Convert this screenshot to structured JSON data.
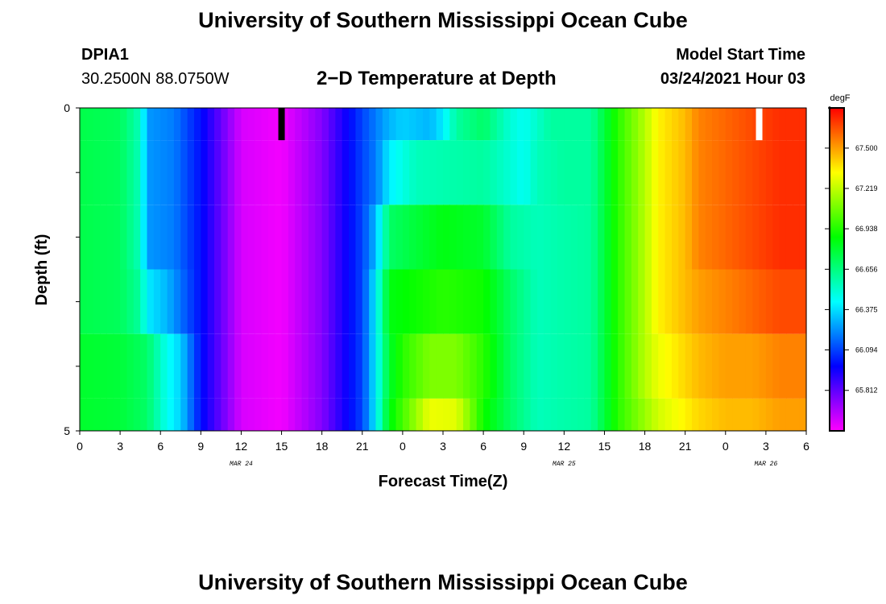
{
  "header": {
    "title": "University of Southern Mississippi Ocean Cube",
    "station": "DPIA1",
    "location": "30.2500N 88.0750W",
    "plot_title": "2−D Temperature at Depth",
    "start_label": "Model Start Time",
    "start_value": "03/24/2021 Hour 03"
  },
  "footer": {
    "title": "University of Southern Mississippi Ocean Cube"
  },
  "chart_data": {
    "type": "heatmap",
    "xlabel": "Forecast Time(Z)",
    "ylabel": "Depth (ft)",
    "x_tick_labels": [
      "0",
      "3",
      "6",
      "9",
      "12",
      "15",
      "18",
      "21",
      "0",
      "3",
      "6",
      "9",
      "12",
      "15",
      "18",
      "21",
      "0",
      "3",
      "6"
    ],
    "date_labels": [
      {
        "label": "MAR 24",
        "hour": 12
      },
      {
        "label": "MAR 25",
        "hour": 36
      },
      {
        "label": "MAR 26",
        "hour": 51
      }
    ],
    "y_tick_labels": [
      "0",
      "5"
    ],
    "xlim_hours": [
      0,
      54
    ],
    "ylim_ft": [
      0,
      5
    ],
    "depth_levels": 5,
    "colorbar": {
      "unit": "degF",
      "min": 65.53,
      "max": 67.78,
      "tick_values": [
        "67.500",
        "67.219",
        "66.938",
        "66.656",
        "66.375",
        "66.094",
        "65.812"
      ]
    },
    "missing_data_hours": [
      {
        "hour": 15,
        "color": "#000000"
      },
      {
        "hour": 50.5,
        "color": "#ffffff"
      }
    ],
    "series": [
      {
        "depth_ft": [
          0,
          0.5
        ],
        "hours": [
          0,
          3,
          4.5,
          5,
          7,
          9,
          12,
          15,
          18,
          21,
          22,
          23,
          24,
          26,
          27,
          28,
          30,
          32,
          33,
          35,
          36,
          38,
          40,
          42,
          43,
          45,
          46,
          48,
          50,
          52,
          54
        ],
        "values": [
          66.75,
          66.72,
          66.55,
          66.25,
          66.2,
          66.0,
          65.6,
          65.55,
          65.75,
          66.1,
          66.2,
          66.3,
          66.35,
          66.3,
          66.4,
          66.6,
          66.7,
          66.5,
          66.45,
          66.6,
          66.6,
          66.6,
          66.95,
          67.2,
          67.35,
          67.45,
          67.55,
          67.6,
          67.65,
          67.7,
          67.7
        ]
      },
      {
        "depth_ft": [
          0.5,
          1.5
        ],
        "hours": [
          0,
          3,
          4.5,
          5,
          7,
          9,
          12,
          15,
          18,
          21,
          22,
          23,
          25,
          30,
          33,
          34,
          36,
          38,
          40,
          42,
          43,
          45,
          46,
          48,
          50,
          52,
          54
        ],
        "values": [
          66.75,
          66.72,
          66.55,
          66.25,
          66.2,
          66.0,
          65.6,
          65.55,
          65.75,
          66.1,
          66.2,
          66.4,
          66.55,
          66.6,
          66.45,
          66.55,
          66.6,
          66.6,
          66.95,
          67.2,
          67.35,
          67.45,
          67.55,
          67.6,
          67.65,
          67.7,
          67.7
        ]
      },
      {
        "depth_ft": [
          1.5,
          2.5
        ],
        "hours": [
          0,
          3,
          4.5,
          5,
          7,
          9,
          12,
          15,
          18,
          21,
          22,
          23,
          25,
          27,
          30,
          32,
          34,
          36,
          38,
          40,
          42,
          43,
          45,
          46,
          48,
          50,
          52,
          54
        ],
        "values": [
          66.75,
          66.72,
          66.55,
          66.25,
          66.2,
          66.0,
          65.6,
          65.55,
          65.75,
          66.1,
          66.3,
          66.7,
          66.78,
          66.85,
          66.8,
          66.6,
          66.55,
          66.58,
          66.6,
          66.95,
          67.2,
          67.35,
          67.45,
          67.55,
          67.6,
          67.65,
          67.7,
          67.7
        ]
      },
      {
        "depth_ft": [
          2.5,
          3.5
        ],
        "hours": [
          0,
          3,
          4.5,
          5,
          6.5,
          9,
          12,
          15,
          18,
          21,
          22,
          23,
          25,
          27,
          30,
          32,
          34,
          36,
          38,
          40,
          42,
          43,
          45,
          46,
          48,
          50,
          52,
          54
        ],
        "values": [
          66.75,
          66.72,
          66.6,
          66.4,
          66.3,
          66.0,
          65.6,
          65.55,
          65.75,
          66.1,
          66.4,
          66.85,
          66.9,
          66.95,
          66.9,
          66.7,
          66.55,
          66.58,
          66.6,
          66.95,
          67.2,
          67.35,
          67.45,
          67.5,
          67.55,
          67.6,
          67.65,
          67.65
        ]
      },
      {
        "depth_ft": [
          3.5,
          4.5
        ],
        "hours": [
          0,
          3,
          5,
          6.5,
          7.5,
          9,
          12,
          15,
          18,
          21,
          22,
          23,
          24,
          26,
          28,
          30,
          32,
          34,
          36,
          38,
          40,
          42,
          43,
          45,
          46,
          48,
          50,
          52,
          54
        ],
        "values": [
          66.8,
          66.78,
          66.7,
          66.45,
          66.35,
          66.0,
          65.6,
          65.55,
          65.75,
          66.1,
          66.4,
          66.8,
          66.95,
          67.1,
          67.1,
          66.95,
          66.7,
          66.55,
          66.58,
          66.6,
          66.95,
          67.2,
          67.3,
          67.4,
          67.45,
          67.5,
          67.5,
          67.55,
          67.55
        ]
      },
      {
        "depth_ft": [
          4.5,
          5.0
        ],
        "hours": [
          0,
          3,
          5,
          6.5,
          7.5,
          9,
          12,
          15,
          18,
          21,
          22,
          23,
          24,
          25,
          26,
          28,
          29,
          30,
          32,
          34,
          36,
          38,
          40,
          42,
          43,
          45,
          46,
          48,
          50,
          52,
          54
        ],
        "values": [
          66.8,
          66.78,
          66.7,
          66.45,
          66.35,
          66.0,
          65.6,
          65.55,
          65.75,
          66.1,
          66.4,
          66.85,
          67.0,
          67.15,
          67.3,
          67.28,
          67.1,
          66.9,
          66.7,
          66.55,
          66.58,
          66.6,
          66.95,
          67.15,
          67.25,
          67.35,
          67.4,
          67.45,
          67.45,
          67.5,
          67.5
        ]
      }
    ]
  }
}
